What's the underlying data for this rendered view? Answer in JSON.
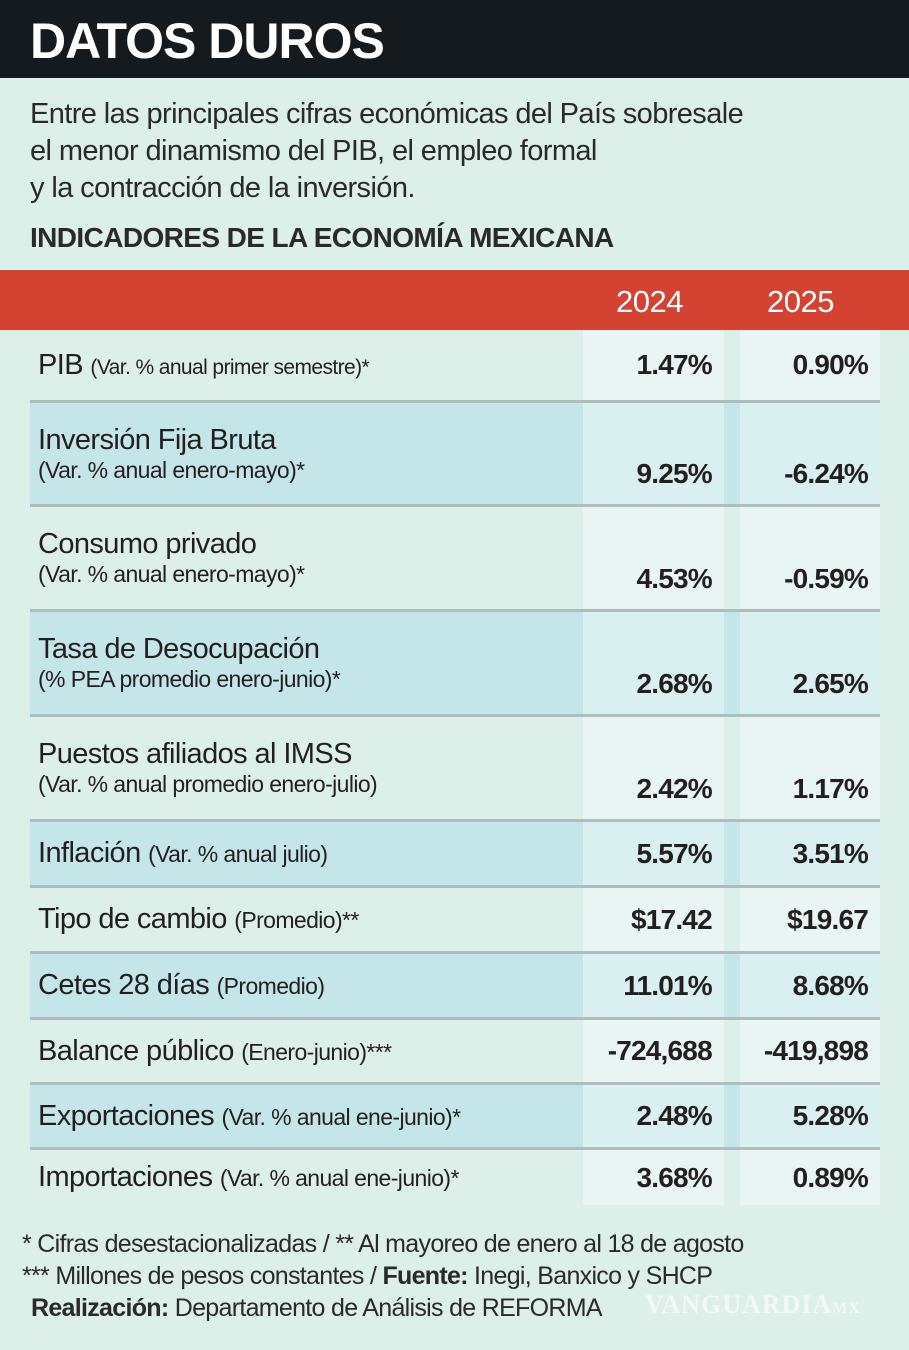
{
  "title": "DATOS DUROS",
  "intro": [
    "Entre las principales cifras económicas del País sobresale",
    "el menor dinamismo del PIB, el empleo formal",
    "y la contracción de la inversión."
  ],
  "subtitle": "INDICADORES DE LA ECONOMÍA MEXICANA",
  "columns": [
    "2024",
    "2025"
  ],
  "rows": [
    {
      "name": "PIB",
      "note": "(Var. % anual primer semestre)*",
      "v2024": "1.47%",
      "v2025": "0.90%"
    },
    {
      "name": "Inversión Fija Bruta",
      "note": "(Var. % anual enero-mayo)*",
      "v2024": "9.25%",
      "v2025": "-6.24%"
    },
    {
      "name": "Consumo privado",
      "note": "(Var. % anual enero-mayo)*",
      "v2024": "4.53%",
      "v2025": "-0.59%"
    },
    {
      "name": "Tasa de Desocupación",
      "note": "(% PEA promedio enero-junio)*",
      "v2024": "2.68%",
      "v2025": "2.65%"
    },
    {
      "name": "Puestos afiliados al IMSS",
      "note": "(Var. % anual promedio enero-julio)",
      "v2024": "2.42%",
      "v2025": "1.17%"
    },
    {
      "name": "Inflación",
      "note": "(Var. % anual julio)",
      "v2024": "5.57%",
      "v2025": "3.51%"
    },
    {
      "name": "Tipo de cambio",
      "note": "(Promedio)**",
      "v2024": "$17.42",
      "v2025": "$19.67"
    },
    {
      "name": "Cetes 28 días",
      "note": "(Promedio)",
      "v2024": "11.01%",
      "v2025": "8.68%"
    },
    {
      "name": "Balance público",
      "note": "(Enero-junio)***",
      "v2024": "-724,688",
      "v2025": "-419,898"
    },
    {
      "name": "Exportaciones",
      "note": "(Var. % anual ene-junio)*",
      "v2024": "2.48%",
      "v2025": "5.28%"
    },
    {
      "name": "Importaciones",
      "note": "(Var. % anual ene-junio)*",
      "v2024": "3.68%",
      "v2025": "0.89%"
    }
  ],
  "footnotes": {
    "line1": "* Cifras desestacionalizadas / ** Al mayoreo de enero al 18 de agosto",
    "line2_pre": "*** Millones de pesos constantes / ",
    "source_label": "Fuente:",
    "source": " Inegi, Banxico y SHCP",
    "credit_label": "Realización:",
    "credit": " Departamento de Análisis de REFORMA"
  },
  "watermark": "VANGUARDIA MX",
  "colors": {
    "header": "#141a1d",
    "accent": "#d44332",
    "background": "#dcefe9",
    "row_alt": "#c4e6e8"
  }
}
